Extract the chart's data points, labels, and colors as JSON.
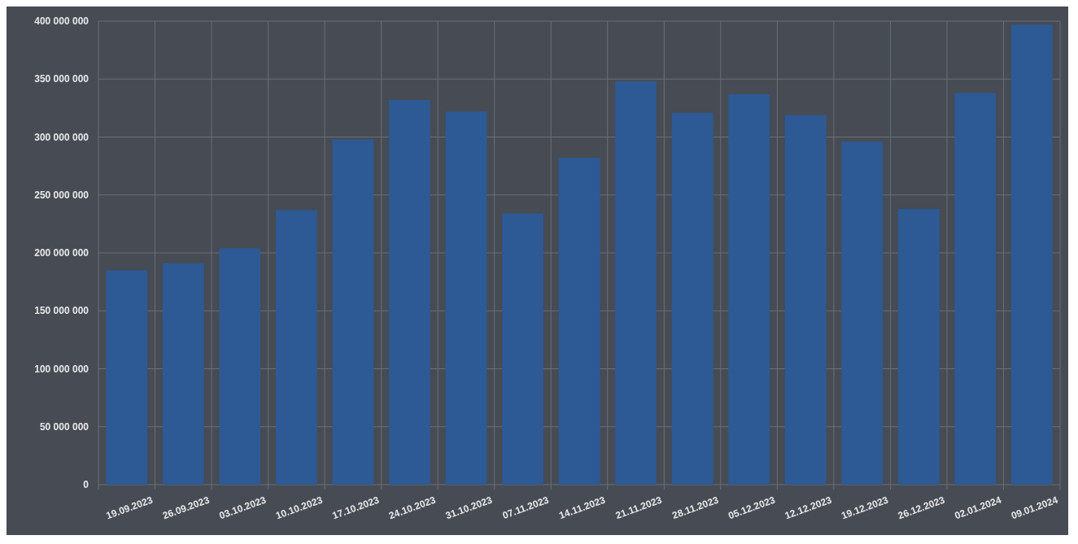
{
  "chart_data": {
    "type": "bar",
    "categories": [
      "19.09.2023",
      "26.09.2023",
      "03.10.2023",
      "10.10.2023",
      "17.10.2023",
      "24.10.2023",
      "31.10.2023",
      "07.11.2023",
      "14.11.2023",
      "21.11.2023",
      "28.11.2023",
      "05.12.2023",
      "12.12.2023",
      "19.12.2023",
      "26.12.2023",
      "02.01.2024",
      "09.01.2024"
    ],
    "values": [
      185000000,
      191000000,
      204000000,
      237000000,
      298000000,
      332000000,
      322000000,
      234000000,
      282000000,
      348000000,
      321000000,
      337000000,
      319000000,
      296000000,
      238000000,
      338000000,
      397000000
    ],
    "color": "#2d5a94",
    "ylim": [
      0,
      400000000
    ],
    "yticks": [
      {
        "value": 0,
        "label": "0"
      },
      {
        "value": 50000000,
        "label": "50 000 000"
      },
      {
        "value": 100000000,
        "label": "100 000 000"
      },
      {
        "value": 150000000,
        "label": "150 000 000"
      },
      {
        "value": 200000000,
        "label": "200 000 000"
      },
      {
        "value": 250000000,
        "label": "250 000 000"
      },
      {
        "value": 300000000,
        "label": "300 000 000"
      },
      {
        "value": 350000000,
        "label": "350 000 000"
      },
      {
        "value": 400000000,
        "label": "400 000 000"
      }
    ],
    "grid": true
  }
}
